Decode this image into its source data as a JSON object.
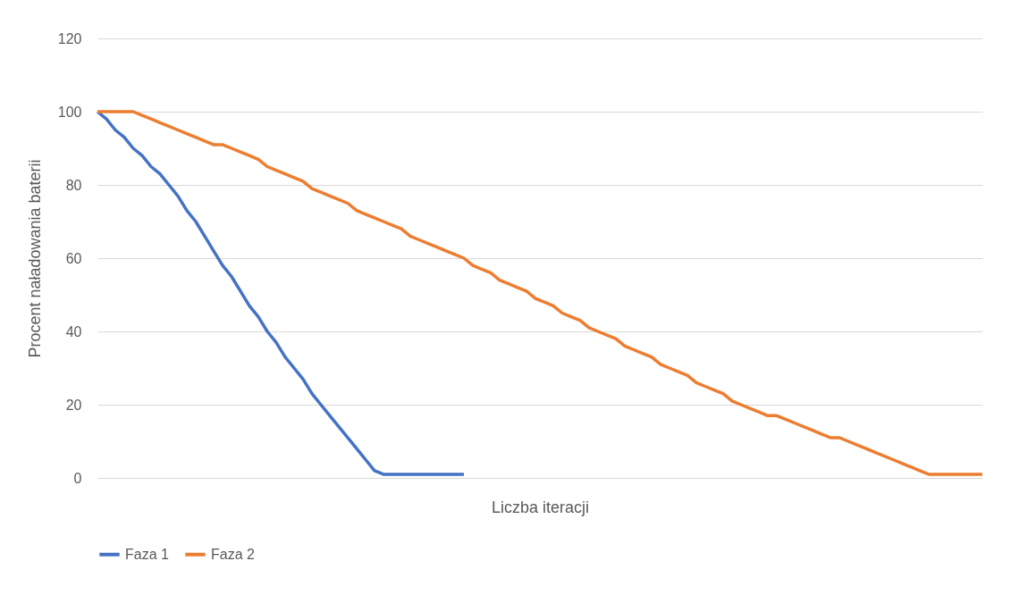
{
  "chart_data": {
    "type": "line",
    "xlabel": "Liczba iteracji",
    "ylabel": "Procent naładowania baterii",
    "categories": [
      null,
      null,
      null,
      null,
      null,
      null,
      null,
      null,
      null,
      null,
      null,
      null,
      null,
      null,
      null,
      null,
      null,
      null,
      null,
      null,
      null,
      null,
      null,
      null,
      null,
      null,
      null,
      null,
      null,
      null,
      null,
      null,
      null,
      null,
      null,
      null,
      null,
      null,
      null,
      null,
      null,
      null,
      null,
      null,
      null,
      null,
      null,
      null,
      null,
      null,
      null,
      null,
      null,
      null,
      null,
      null,
      null,
      null,
      null,
      null,
      null,
      null,
      null,
      null,
      null,
      null,
      null,
      null,
      null,
      null,
      null,
      null,
      null,
      null,
      null,
      null,
      null,
      null,
      null,
      null,
      null,
      null,
      null,
      null,
      null,
      null,
      null,
      null,
      null,
      null,
      null,
      null,
      null,
      null,
      null,
      null,
      null,
      null,
      null,
      null
    ],
    "series": [
      {
        "name": "Faza 1",
        "color": "#4472c4",
        "values": [
          100,
          98,
          95,
          93,
          90,
          88,
          85,
          83,
          80,
          77,
          73,
          70,
          66,
          62,
          58,
          55,
          51,
          47,
          44,
          40,
          37,
          33,
          30,
          27,
          23,
          20,
          17,
          14,
          11,
          8,
          5,
          2,
          1,
          1,
          1,
          1,
          1,
          1,
          1,
          1,
          1,
          1,
          null,
          null,
          null,
          null,
          null,
          null,
          null,
          null,
          null,
          null,
          null,
          null,
          null,
          null,
          null,
          null,
          null,
          null,
          null,
          null,
          null,
          null,
          null,
          null,
          null,
          null,
          null,
          null,
          null,
          null,
          null,
          null,
          null,
          null,
          null,
          null,
          null,
          null,
          null,
          null,
          null,
          null,
          null,
          null,
          null,
          null,
          null,
          null,
          null,
          null,
          null,
          null,
          null,
          null,
          null,
          null,
          null,
          null
        ]
      },
      {
        "name": "Faza 2",
        "color": "#ed7d31",
        "values": [
          100,
          100,
          100,
          100,
          100,
          99,
          98,
          97,
          96,
          95,
          94,
          93,
          92,
          91,
          91,
          90,
          89,
          88,
          87,
          85,
          84,
          83,
          82,
          81,
          79,
          78,
          77,
          76,
          75,
          73,
          72,
          71,
          70,
          69,
          68,
          66,
          65,
          64,
          63,
          62,
          61,
          60,
          58,
          57,
          56,
          54,
          53,
          52,
          51,
          49,
          48,
          47,
          45,
          44,
          43,
          41,
          40,
          39,
          38,
          36,
          35,
          34,
          33,
          31,
          30,
          29,
          28,
          26,
          25,
          24,
          23,
          21,
          20,
          19,
          18,
          17,
          17,
          16,
          15,
          14,
          13,
          12,
          11,
          11,
          10,
          9,
          8,
          7,
          6,
          5,
          4,
          3,
          2,
          1,
          1,
          1,
          1,
          1,
          1,
          1
        ]
      }
    ],
    "ylim": [
      0,
      120
    ],
    "yticks": [
      0,
      20,
      40,
      60,
      80,
      100,
      120
    ],
    "grid": "y",
    "legend": "bottom",
    "tick_labels": "y",
    "marker": "none",
    "line_style": "solid"
  }
}
